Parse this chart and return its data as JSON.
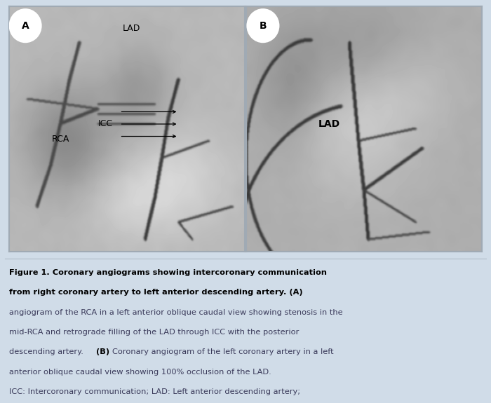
{
  "background_color": "#d0dce8",
  "text_area_bg": "#e4e8ec",
  "fig_width": 7.0,
  "fig_height": 5.75,
  "label_A": "A",
  "label_B": "B",
  "label_LAD_left": "LAD",
  "label_RCA": "RCA",
  "label_ICC": "ICC",
  "label_LAD_right": "LAD",
  "font_size_caption": 8.2,
  "font_size_panel_labels": 10,
  "font_size_angio_labels": 9,
  "panel_border_color": "#a0aab4",
  "caption_text_color": "#3a3a5a",
  "caption_bold_color": "#000000",
  "abbrev_text_color": "#3a3a5a",
  "seed_A": 42,
  "seed_B": 99
}
